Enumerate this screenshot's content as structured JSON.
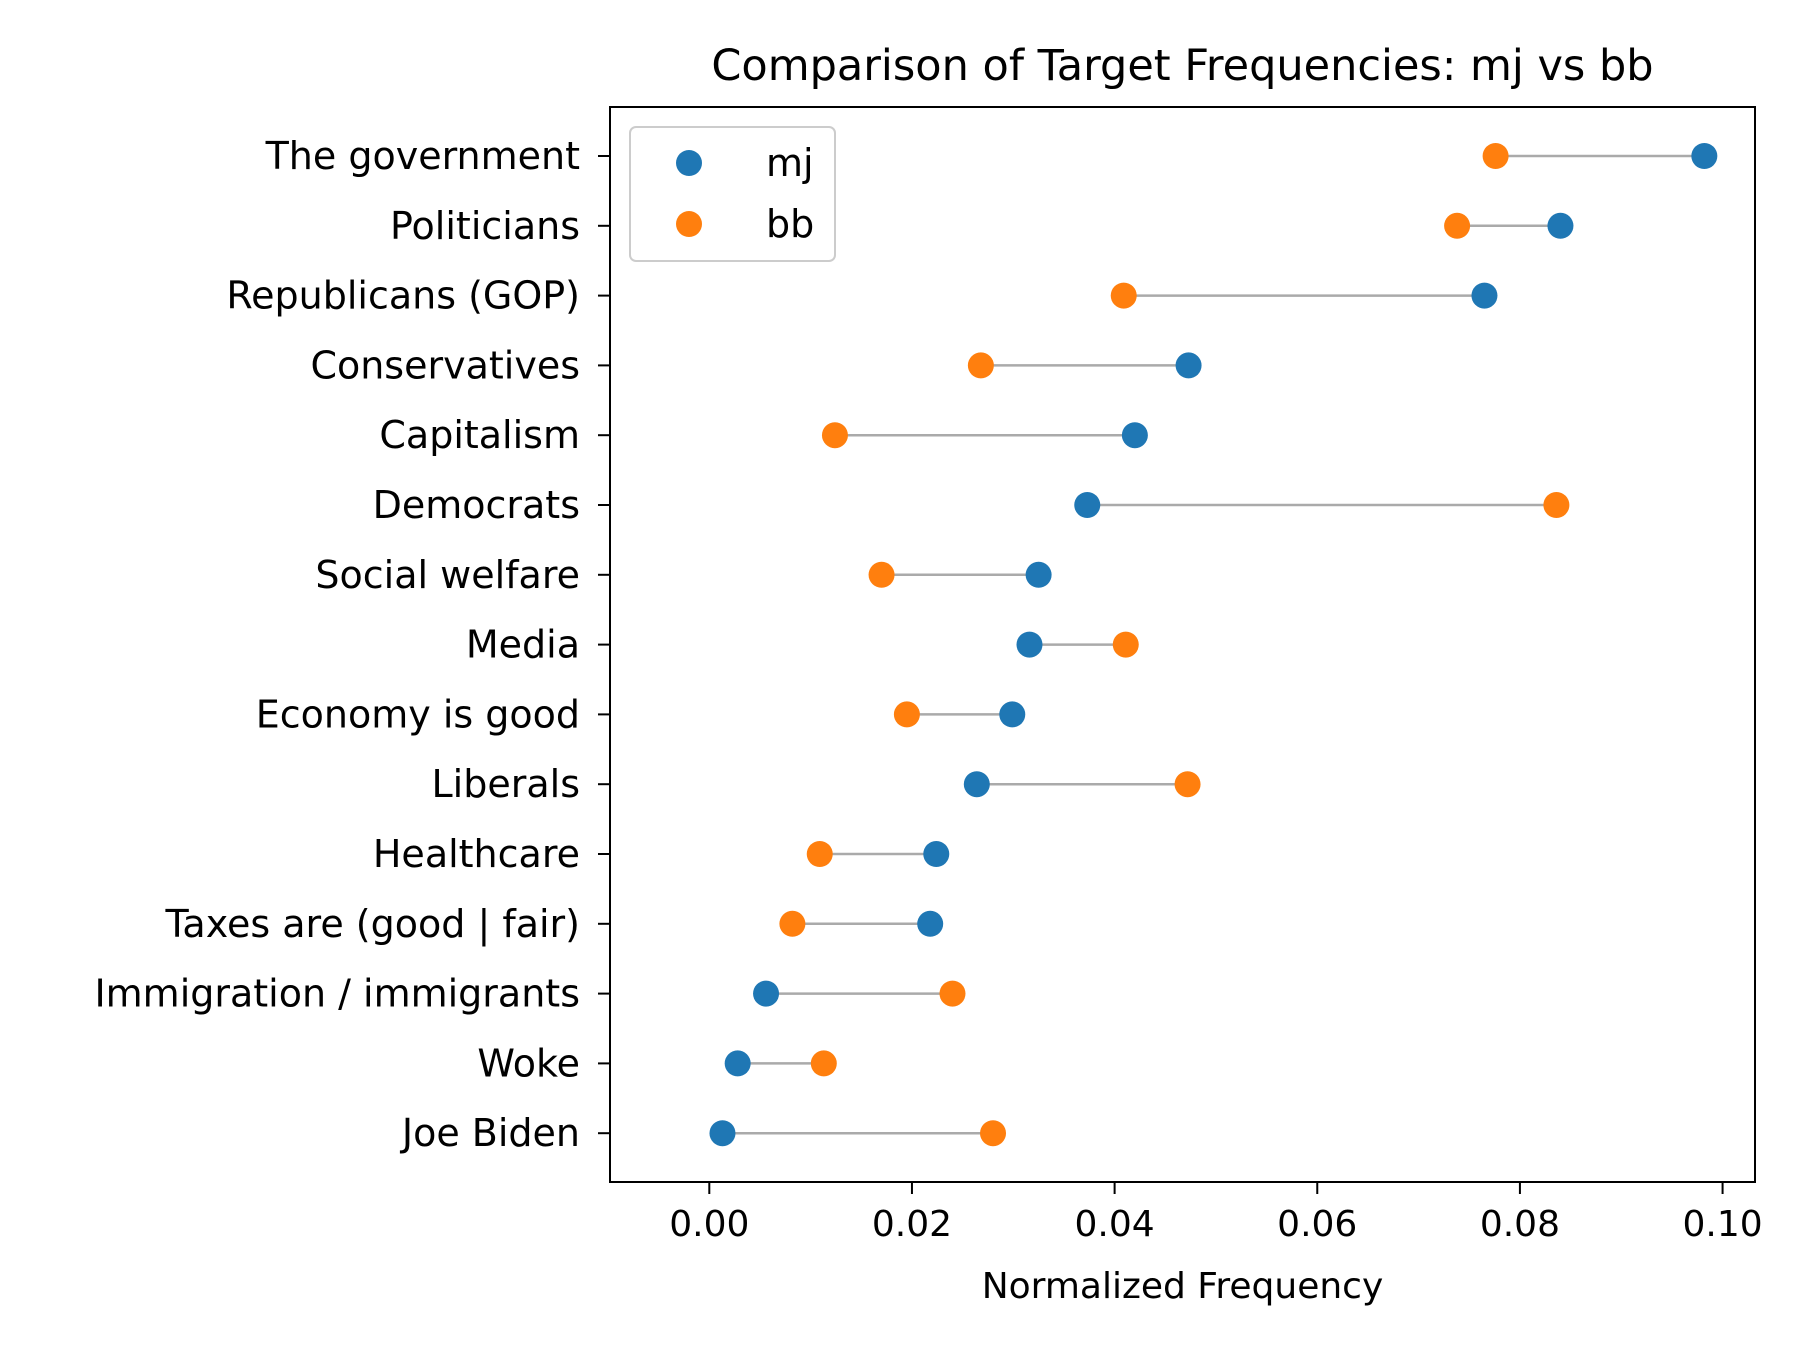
{
  "chart_data": {
    "type": "scatter",
    "subtype": "dumbbell",
    "title": "Comparison of Target Frequencies: mj vs bb",
    "xlabel": "Normalized Frequency",
    "ylabel": "",
    "xlim": [
      -0.0098,
      0.1032
    ],
    "xticks": [
      "0.00",
      "0.02",
      "0.04",
      "0.06",
      "0.08",
      "0.10"
    ],
    "grid": false,
    "legend_position": "upper-left",
    "categories": [
      "The government",
      "Politicians",
      "Republicans (GOP)",
      "Conservatives",
      "Capitalism",
      "Democrats",
      "Social welfare",
      "Media",
      "Economy is good",
      "Liberals",
      "Healthcare",
      "Taxes are (good | fair)",
      "Immigration / immigrants",
      "Woke",
      "Joe Biden"
    ],
    "series": [
      {
        "name": "mj",
        "color": "#1f77b4",
        "values": [
          0.0982,
          0.084,
          0.0765,
          0.0473,
          0.042,
          0.0373,
          0.0325,
          0.0316,
          0.0299,
          0.0264,
          0.0224,
          0.0218,
          0.0056,
          0.0028,
          0.0013
        ]
      },
      {
        "name": "bb",
        "color": "#ff7f0e",
        "values": [
          0.0776,
          0.0738,
          0.0409,
          0.0268,
          0.0124,
          0.0836,
          0.017,
          0.0411,
          0.0195,
          0.0472,
          0.0109,
          0.0082,
          0.024,
          0.0113,
          0.028
        ]
      }
    ],
    "connector_color": "#aaaaaa"
  }
}
